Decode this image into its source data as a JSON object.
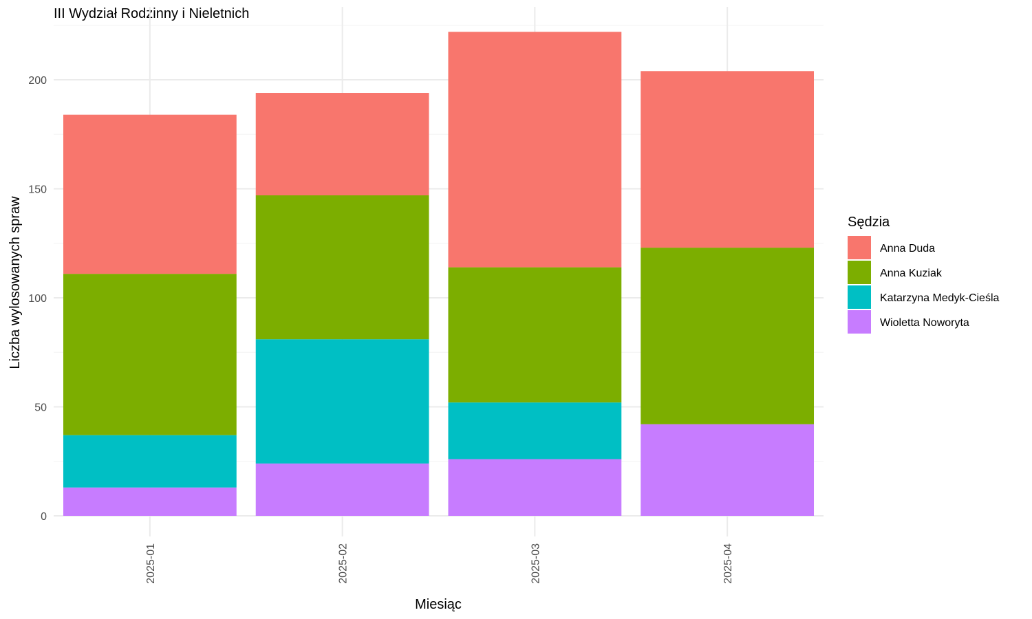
{
  "chart_data": {
    "type": "bar",
    "stacked": true,
    "title": "III Wydział Rodzinny i Nieletnich",
    "xlabel": "Miesiąc",
    "ylabel": "Liczba wylosowanych spraw",
    "categories": [
      "2025-01",
      "2025-02",
      "2025-03",
      "2025-04"
    ],
    "ylim": [
      0,
      232
    ],
    "yticks": [
      0,
      50,
      100,
      150,
      200
    ],
    "grid": true,
    "legend": {
      "title": "Sędzia",
      "position": "right"
    },
    "series": [
      {
        "name": "Wioletta Noworyta",
        "color": "#C77CFF",
        "values": [
          13,
          24,
          26,
          42
        ]
      },
      {
        "name": "Katarzyna Medyk-Cieśla",
        "color": "#00BFC4",
        "values": [
          24,
          57,
          26,
          0
        ]
      },
      {
        "name": "Anna Kuziak",
        "color": "#7CAE00",
        "values": [
          74,
          66,
          62,
          81
        ]
      },
      {
        "name": "Anna Duda",
        "color": "#F8766D",
        "values": [
          73,
          47,
          108,
          81
        ]
      }
    ],
    "legend_order": [
      "Anna Duda",
      "Anna Kuziak",
      "Katarzyna Medyk-Cieśla",
      "Wioletta Noworyta"
    ]
  }
}
